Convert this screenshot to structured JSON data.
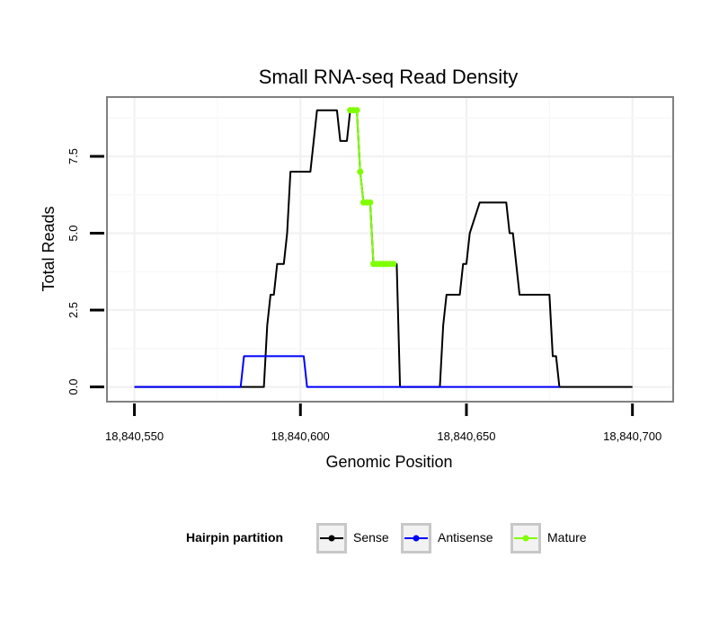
{
  "chart_data": {
    "type": "line",
    "title": "Small RNA-seq Read Density",
    "xlabel": "Genomic Position",
    "ylabel": "Total Reads",
    "xlim": [
      18840542,
      18840712
    ],
    "ylim": [
      -0.45,
      9.4
    ],
    "x_ticks": [
      18840550,
      18840600,
      18840650,
      18840700
    ],
    "x_tick_labels": [
      "18,840,550",
      "18,840,600",
      "18,840,650",
      "18,840,700"
    ],
    "y_ticks": [
      0,
      2.5,
      5,
      7.5
    ],
    "y_tick_labels": [
      "0.0",
      "2.5",
      "5.0",
      "7.5"
    ],
    "grid": true,
    "legend": {
      "title": "Hairpin partition",
      "position": "bottom",
      "entries": [
        {
          "name": "Sense",
          "color": "#000000"
        },
        {
          "name": "Antisense",
          "color": "#0000ff"
        },
        {
          "name": "Mature",
          "color": "#7fff00"
        }
      ]
    },
    "series": [
      {
        "name": "Sense",
        "color": "#000000",
        "points": [
          [
            18840550,
            0
          ],
          [
            18840589,
            0
          ],
          [
            18840590,
            2
          ],
          [
            18840591,
            3
          ],
          [
            18840592,
            3
          ],
          [
            18840593,
            4
          ],
          [
            18840595,
            4
          ],
          [
            18840596,
            5
          ],
          [
            18840597,
            7
          ],
          [
            18840603,
            7
          ],
          [
            18840604,
            8
          ],
          [
            18840605,
            9
          ],
          [
            18840611,
            9
          ],
          [
            18840612,
            8
          ],
          [
            18840614,
            8
          ],
          [
            18840615,
            9
          ],
          [
            18840617,
            9
          ],
          [
            18840618,
            7
          ],
          [
            18840619,
            6
          ],
          [
            18840621,
            6
          ],
          [
            18840622,
            4
          ],
          [
            18840629,
            4
          ],
          [
            18840630,
            0
          ],
          [
            18840642,
            0
          ],
          [
            18840643,
            2
          ],
          [
            18840644,
            3
          ],
          [
            18840648,
            3
          ],
          [
            18840649,
            4
          ],
          [
            18840650,
            4
          ],
          [
            18840651,
            5
          ],
          [
            18840654,
            6
          ],
          [
            18840662,
            6
          ],
          [
            18840663,
            5
          ],
          [
            18840664,
            5
          ],
          [
            18840666,
            3
          ],
          [
            18840675,
            3
          ],
          [
            18840676,
            1
          ],
          [
            18840677,
            1
          ],
          [
            18840678,
            0
          ],
          [
            18840700,
            0
          ]
        ]
      },
      {
        "name": "Antisense",
        "color": "#0000ff",
        "points": [
          [
            18840550,
            0
          ],
          [
            18840582,
            0
          ],
          [
            18840583,
            1
          ],
          [
            18840601,
            1
          ],
          [
            18840602,
            0
          ],
          [
            18840678,
            0
          ]
        ]
      },
      {
        "name": "Mature",
        "color": "#7fff00",
        "points": [
          [
            18840615,
            9
          ],
          [
            18840616,
            9
          ],
          [
            18840617,
            9
          ],
          [
            18840618,
            7
          ],
          [
            18840619,
            6
          ],
          [
            18840620,
            6
          ],
          [
            18840621,
            6
          ],
          [
            18840622,
            4
          ],
          [
            18840623,
            4
          ],
          [
            18840624,
            4
          ],
          [
            18840625,
            4
          ],
          [
            18840626,
            4
          ],
          [
            18840627,
            4
          ],
          [
            18840628,
            4
          ]
        ]
      }
    ]
  }
}
